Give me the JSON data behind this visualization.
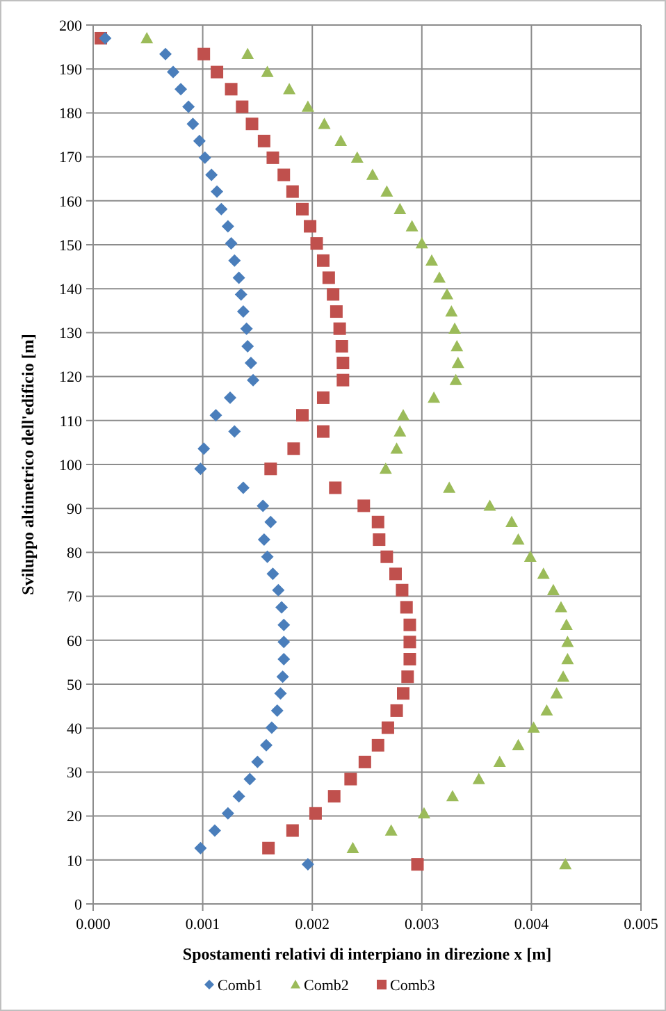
{
  "chart_data": {
    "type": "scatter",
    "xlabel": "Spostamenti relativi di interpiano in direzione x  [m]",
    "ylabel": "Sviluppo altimetrico dell'edificio  [m]",
    "xlim": [
      0,
      0.005
    ],
    "xticks": [
      {
        "value": 0,
        "label": "0.000"
      },
      {
        "value": 0.001,
        "label": "0.001"
      },
      {
        "value": 0.002,
        "label": "0.002"
      },
      {
        "value": 0.003,
        "label": "0.003"
      },
      {
        "value": 0.004,
        "label": "0.004"
      },
      {
        "value": 0.005,
        "label": "0.005"
      }
    ],
    "ylim": [
      0,
      200
    ],
    "yticks": [
      0,
      10,
      20,
      30,
      40,
      50,
      60,
      70,
      80,
      90,
      100,
      110,
      120,
      130,
      140,
      150,
      160,
      170,
      180,
      190,
      200
    ],
    "grid": true,
    "legend": "bottom",
    "series": [
      {
        "name": "Comb1",
        "color": "#4a7ebb",
        "marker": "diamond",
        "x": [
          0.00011,
          0.00066,
          0.00073,
          0.0008,
          0.00087,
          0.00091,
          0.00097,
          0.00102,
          0.00108,
          0.00113,
          0.00117,
          0.00123,
          0.00126,
          0.00129,
          0.00133,
          0.00135,
          0.00137,
          0.0014,
          0.00141,
          0.00144,
          0.00146,
          0.00125,
          0.00112,
          0.00129,
          0.00101,
          0.00098,
          0.00137,
          0.00155,
          0.00162,
          0.00156,
          0.00159,
          0.00164,
          0.00169,
          0.00172,
          0.00174,
          0.00174,
          0.00174,
          0.00173,
          0.00171,
          0.00168,
          0.00163,
          0.00158,
          0.0015,
          0.00143,
          0.00133,
          0.00123,
          0.00111,
          0.00098,
          0.00196
        ],
        "values": [
          197,
          193.4,
          189.3,
          185.4,
          181.4,
          177.5,
          173.6,
          169.8,
          165.9,
          162.1,
          158.1,
          154.2,
          150.3,
          146.4,
          142.5,
          138.7,
          134.8,
          130.9,
          126.9,
          123.1,
          119.2,
          115.2,
          111.2,
          107.5,
          103.6,
          99,
          94.7,
          90.6,
          86.9,
          82.9,
          79,
          75.1,
          71.4,
          67.5,
          63.5,
          59.6,
          55.7,
          51.7,
          47.9,
          44,
          40.1,
          36.1,
          32.3,
          28.4,
          24.5,
          20.6,
          16.7,
          12.7,
          9
        ]
      },
      {
        "name": "Comb2",
        "color": "#9bbb59",
        "marker": "triangle",
        "x": [
          0.00049,
          0.00141,
          0.00159,
          0.00179,
          0.00196,
          0.00211,
          0.00226,
          0.00241,
          0.00255,
          0.00268,
          0.0028,
          0.00291,
          0.003,
          0.00309,
          0.00316,
          0.00323,
          0.00327,
          0.0033,
          0.00332,
          0.00333,
          0.00331,
          0.00311,
          0.00283,
          0.0028,
          0.00277,
          0.00267,
          0.00325,
          0.00362,
          0.00382,
          0.00388,
          0.00399,
          0.00411,
          0.0042,
          0.00427,
          0.00432,
          0.00433,
          0.00433,
          0.00429,
          0.00423,
          0.00414,
          0.00402,
          0.00388,
          0.00371,
          0.00352,
          0.00328,
          0.00302,
          0.00272,
          0.00237,
          0.00431
        ],
        "values": [
          197,
          193.4,
          189.3,
          185.4,
          181.4,
          177.5,
          173.6,
          169.8,
          165.9,
          162.1,
          158.1,
          154.2,
          150.3,
          146.4,
          142.5,
          138.7,
          134.8,
          130.9,
          126.9,
          123.1,
          119.2,
          115.2,
          111.2,
          107.5,
          103.6,
          99,
          94.7,
          90.6,
          86.9,
          82.9,
          79,
          75.1,
          71.4,
          67.5,
          63.5,
          59.6,
          55.7,
          51.7,
          47.9,
          44,
          40.1,
          36.1,
          32.3,
          28.4,
          24.5,
          20.6,
          16.7,
          12.7,
          9
        ]
      },
      {
        "name": "Comb3",
        "color": "#c0504d",
        "marker": "square",
        "x": [
          7e-05,
          0.00101,
          0.00113,
          0.00126,
          0.00136,
          0.00145,
          0.00156,
          0.00164,
          0.00174,
          0.00182,
          0.00191,
          0.00198,
          0.00204,
          0.0021,
          0.00215,
          0.00219,
          0.00222,
          0.00225,
          0.00227,
          0.00228,
          0.00228,
          0.0021,
          0.00191,
          0.0021,
          0.00183,
          0.00162,
          0.00221,
          0.00247,
          0.0026,
          0.00261,
          0.00268,
          0.00276,
          0.00282,
          0.00286,
          0.00289,
          0.00289,
          0.00289,
          0.00287,
          0.00283,
          0.00277,
          0.00269,
          0.0026,
          0.00248,
          0.00235,
          0.0022,
          0.00203,
          0.00182,
          0.0016,
          0.00296
        ],
        "values": [
          197,
          193.4,
          189.3,
          185.4,
          181.4,
          177.5,
          173.6,
          169.8,
          165.9,
          162.1,
          158.1,
          154.2,
          150.3,
          146.4,
          142.5,
          138.7,
          134.8,
          130.9,
          126.9,
          123.1,
          119.2,
          115.2,
          111.2,
          107.5,
          103.6,
          99,
          94.7,
          90.6,
          86.9,
          82.9,
          79,
          75.1,
          71.4,
          67.5,
          63.5,
          59.6,
          55.7,
          51.7,
          47.9,
          44,
          40.1,
          36.1,
          32.3,
          28.4,
          24.5,
          20.6,
          16.7,
          12.7,
          9
        ]
      }
    ]
  }
}
